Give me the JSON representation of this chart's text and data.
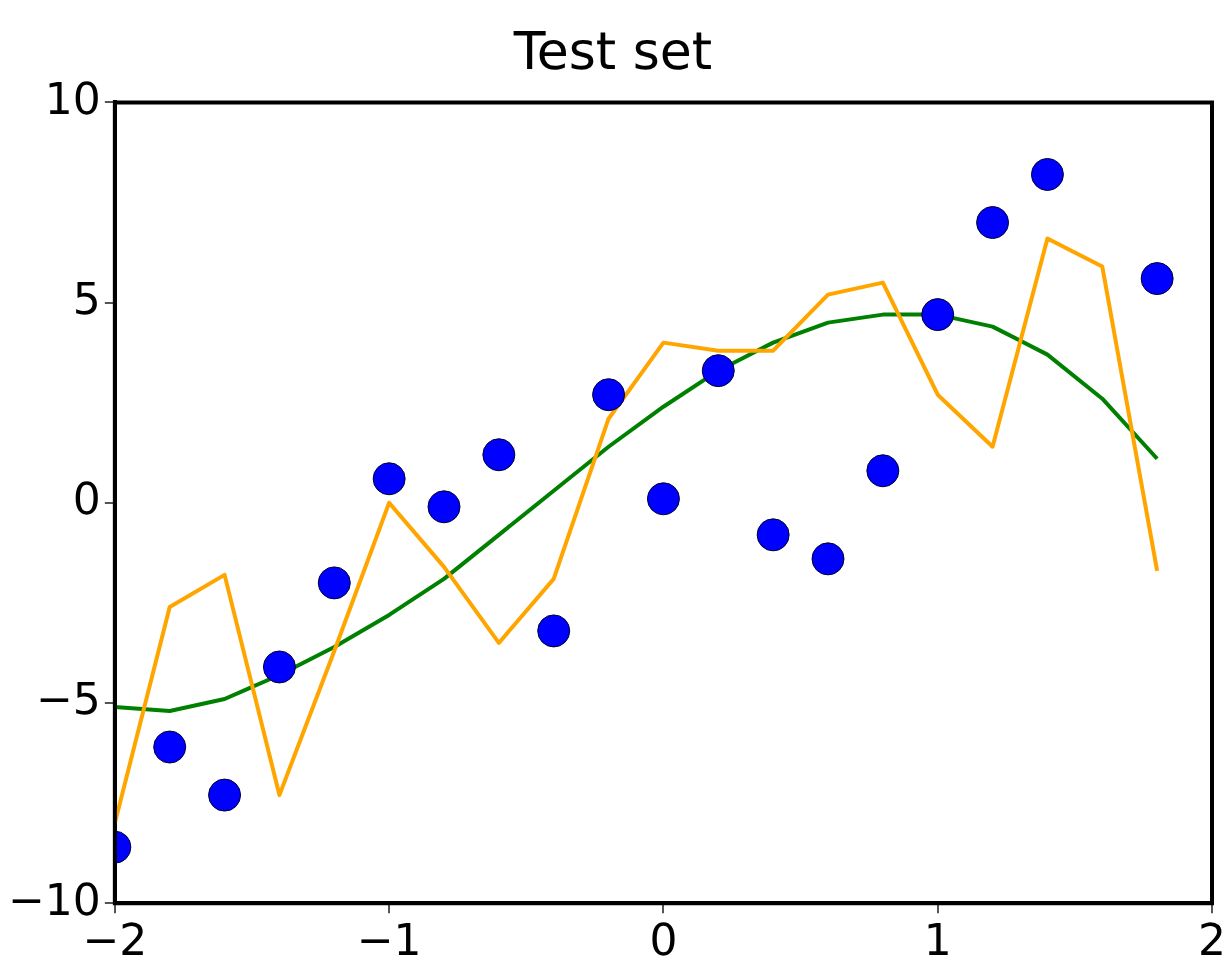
{
  "chart_data": {
    "type": "line",
    "title": "Test set",
    "xlim": [
      -2,
      2
    ],
    "xticks": [
      {
        "value": -2,
        "label": "−2"
      },
      {
        "value": -1,
        "label": "−1"
      },
      0,
      1,
      2
    ],
    "ylim": [
      -10,
      10
    ],
    "yticks": [
      {
        "value": -10,
        "label": "−10"
      },
      {
        "value": -5,
        "label": "−5"
      },
      0,
      5,
      10
    ],
    "grid": false,
    "legend": false,
    "series": [
      {
        "type": "scatter",
        "marker": "circle",
        "color": "#0000ff",
        "x": [
          -2,
          -1.8,
          -1.6,
          -1.4,
          -1.2,
          -1.0,
          -0.8,
          -0.6,
          -0.4,
          -0.2,
          0,
          0.2,
          0.4,
          0.6,
          0.8,
          1.0,
          1.2,
          1.4,
          1.8
        ],
        "values": [
          -8.6,
          -6.1,
          -7.3,
          -4.1,
          -2.0,
          0.6,
          -0.1,
          1.2,
          -3.2,
          2.7,
          0.1,
          3.3,
          -0.8,
          -1.4,
          0.8,
          4.7,
          7.0,
          8.2,
          5.6
        ]
      },
      {
        "type": "line",
        "marker": "none",
        "color": "#ffa500",
        "x": [
          -2,
          -1.8,
          -1.6,
          -1.4,
          -1.2,
          -1.0,
          -0.8,
          -0.6,
          -0.4,
          -0.2,
          0,
          0.2,
          0.4,
          0.6,
          0.8,
          1.0,
          1.2,
          1.4,
          1.6,
          1.8
        ],
        "values": [
          -8.0,
          -2.6,
          -1.8,
          -7.3,
          -3.7,
          0.0,
          -1.6,
          -3.5,
          -1.9,
          2.1,
          4.0,
          3.8,
          3.8,
          5.2,
          5.5,
          2.7,
          1.4,
          6.6,
          5.9,
          -1.7
        ]
      },
      {
        "type": "line",
        "marker": "none",
        "color": "#008000",
        "x": [
          -2,
          -1.8,
          -1.6,
          -1.4,
          -1.2,
          -1.0,
          -0.8,
          -0.6,
          -0.4,
          -0.2,
          0,
          0.2,
          0.4,
          0.6,
          0.8,
          1.0,
          1.2,
          1.4,
          1.6,
          1.8
        ],
        "values": [
          -5.1,
          -5.2,
          -4.9,
          -4.3,
          -3.6,
          -2.8,
          -1.9,
          -0.8,
          0.3,
          1.4,
          2.4,
          3.3,
          4.0,
          4.5,
          4.7,
          4.7,
          4.4,
          3.7,
          2.6,
          1.1
        ]
      }
    ]
  }
}
